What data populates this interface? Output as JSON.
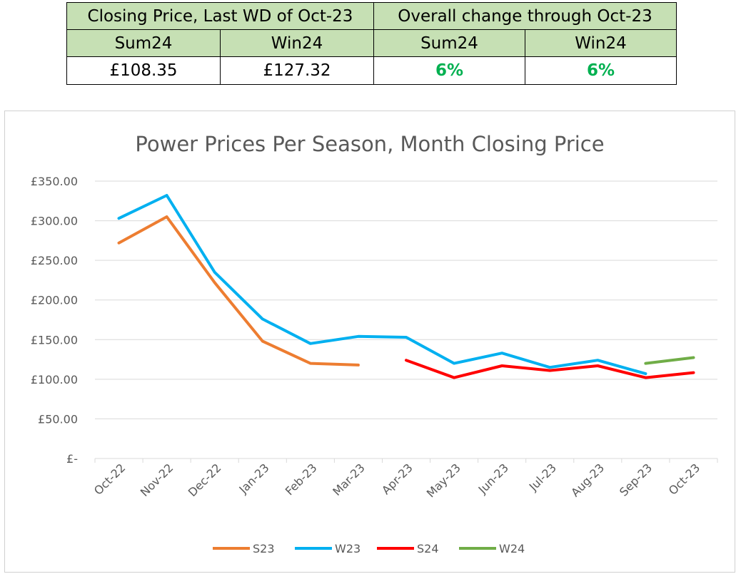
{
  "summary_table": {
    "header_left": "Closing Price, Last WD of Oct-23",
    "header_right": "Overall change through Oct-23",
    "columns": [
      "Sum24",
      "Win24",
      "Sum24",
      "Win24"
    ],
    "values": [
      "£108.35",
      "£127.32",
      "6%",
      "6%"
    ],
    "colors": {
      "header_bg": "#c6e0b4",
      "positive": "#00b050"
    }
  },
  "chart_data": {
    "type": "line",
    "title": "Power Prices Per Season, Month Closing Price",
    "categories": [
      "Oct-22",
      "Nov-22",
      "Dec-22",
      "Jan-23",
      "Feb-23",
      "Mar-23",
      "Apr-23",
      "May-23",
      "Jun-23",
      "Jul-23",
      "Aug-23",
      "Sep-23",
      "Oct-23"
    ],
    "y_ticks": [
      "£-",
      "£50.00",
      "£100.00",
      "£150.00",
      "£200.00",
      "£250.00",
      "£300.00",
      "£350.00"
    ],
    "ylim": [
      0,
      350
    ],
    "grid": true,
    "legend_position": "bottom",
    "series": [
      {
        "name": "S23",
        "color": "#ed7d31",
        "values": [
          272,
          305,
          222,
          148,
          120,
          118,
          null,
          null,
          null,
          null,
          null,
          null,
          null
        ]
      },
      {
        "name": "W23",
        "color": "#00b0f0",
        "values": [
          303,
          332,
          235,
          176,
          145,
          154,
          153,
          120,
          133,
          115,
          124,
          107,
          null
        ]
      },
      {
        "name": "S24",
        "color": "#ff0000",
        "values": [
          null,
          null,
          null,
          null,
          null,
          null,
          124,
          102,
          117,
          111,
          117,
          102,
          108.35
        ]
      },
      {
        "name": "W24",
        "color": "#70ad47",
        "values": [
          null,
          null,
          null,
          null,
          null,
          null,
          null,
          null,
          null,
          null,
          null,
          120,
          127.32
        ]
      }
    ]
  }
}
